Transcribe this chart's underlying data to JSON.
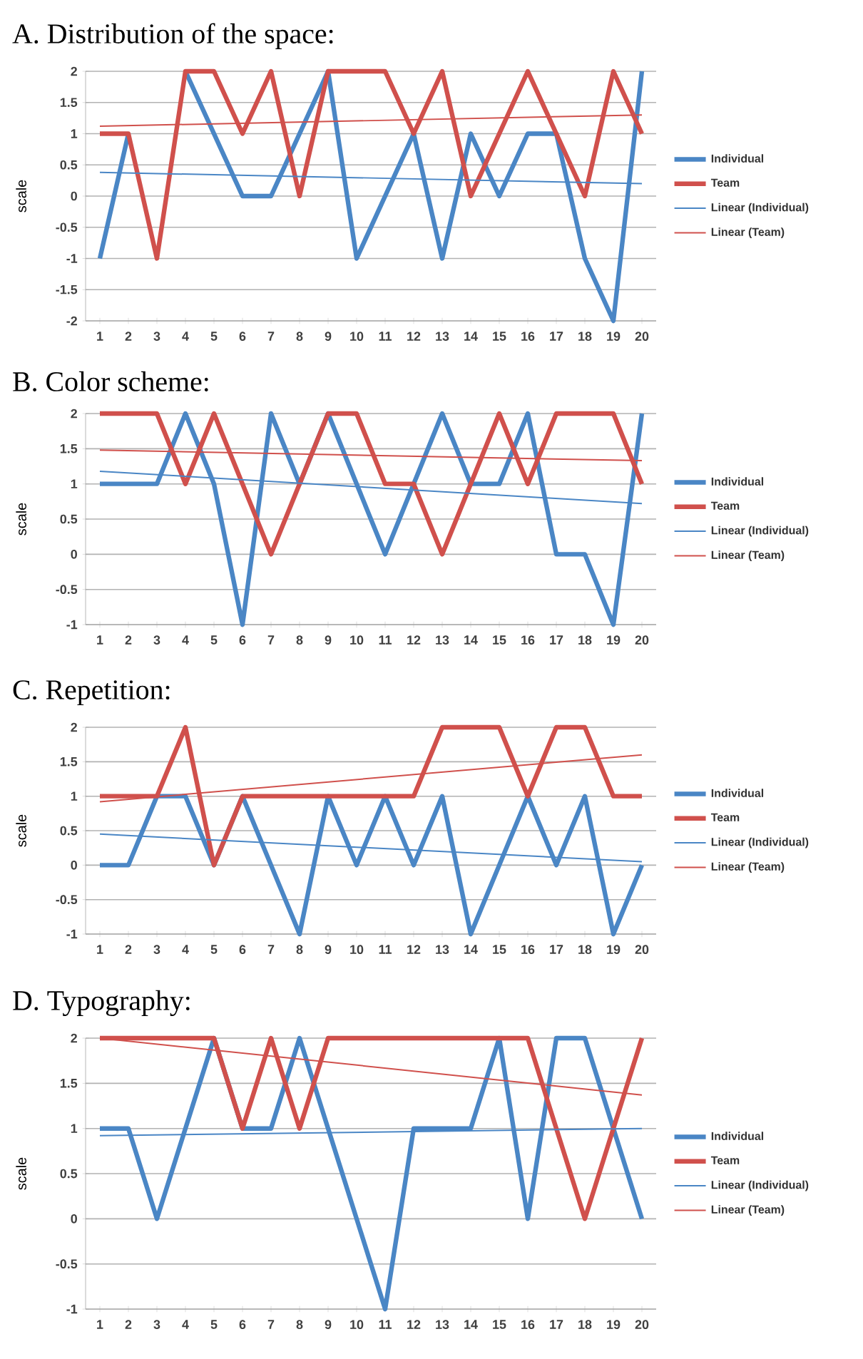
{
  "chart_data": [
    {
      "type": "line",
      "title": "A. Distribution of the space:",
      "ylabel": "scale",
      "categories": [
        "1",
        "2",
        "3",
        "4",
        "5",
        "6",
        "7",
        "8",
        "9",
        "10",
        "11",
        "12",
        "13",
        "14",
        "15",
        "16",
        "17",
        "18",
        "19",
        "20"
      ],
      "ylim": [
        -2,
        2
      ],
      "yticks": [
        -2,
        -1.5,
        -1,
        -0.5,
        0,
        0.5,
        1,
        1.5,
        2
      ],
      "grid": "y",
      "legend": "right",
      "series": [
        {
          "name": "Individual",
          "color": "#4a86c5",
          "values": [
            -1,
            1,
            null,
            2,
            1,
            0,
            0,
            1,
            2,
            -1,
            0,
            1,
            -1,
            1,
            0,
            1,
            1,
            -1,
            -2,
            2
          ]
        },
        {
          "name": "Team",
          "color": "#d0504c",
          "values": [
            1,
            1,
            -1,
            2,
            2,
            1,
            2,
            0,
            2,
            2,
            2,
            1,
            2,
            0,
            1,
            2,
            1,
            0,
            2,
            1
          ]
        },
        {
          "name": "Linear (Individual)",
          "color": "#4a86c5",
          "type": "line",
          "x": [
            "1",
            "20"
          ],
          "values": [
            0.38,
            0.2
          ]
        },
        {
          "name": "Linear (Team)",
          "color": "#d0504c",
          "type": "line",
          "x": [
            "1",
            "20"
          ],
          "values": [
            1.12,
            1.3
          ]
        }
      ]
    },
    {
      "type": "line",
      "title": "B. Color scheme:",
      "ylabel": "scale",
      "categories": [
        "1",
        "2",
        "3",
        "4",
        "5",
        "6",
        "7",
        "8",
        "9",
        "10",
        "11",
        "12",
        "13",
        "14",
        "15",
        "16",
        "17",
        "18",
        "19",
        "20"
      ],
      "ylim": [
        -1,
        2
      ],
      "yticks": [
        -1,
        -0.5,
        0,
        0.5,
        1,
        1.5,
        2
      ],
      "grid": "y",
      "legend": "right",
      "series": [
        {
          "name": "Individual",
          "color": "#4a86c5",
          "values": [
            1,
            1,
            1,
            2,
            1,
            -1,
            2,
            1,
            2,
            1,
            0,
            1,
            2,
            1,
            1,
            2,
            0,
            0,
            -1,
            2
          ]
        },
        {
          "name": "Team",
          "color": "#d0504c",
          "values": [
            2,
            2,
            2,
            1,
            2,
            1,
            0,
            1,
            2,
            2,
            1,
            1,
            0,
            1,
            2,
            1,
            2,
            2,
            2,
            1
          ]
        },
        {
          "name": "Linear (Individual)",
          "color": "#4a86c5",
          "type": "line",
          "x": [
            "1",
            "20"
          ],
          "values": [
            1.18,
            0.72
          ]
        },
        {
          "name": "Linear (Team)",
          "color": "#d0504c",
          "type": "line",
          "x": [
            "1",
            "20"
          ],
          "values": [
            1.48,
            1.33
          ]
        }
      ]
    },
    {
      "type": "line",
      "title": "C. Repetition:",
      "ylabel": "scale",
      "categories": [
        "1",
        "2",
        "3",
        "4",
        "5",
        "6",
        "7",
        "8",
        "9",
        "10",
        "11",
        "12",
        "13",
        "14",
        "15",
        "16",
        "17",
        "18",
        "19",
        "20"
      ],
      "ylim": [
        -1,
        2
      ],
      "yticks": [
        -1,
        -0.5,
        0,
        0.5,
        1,
        1.5,
        2
      ],
      "grid": "y",
      "legend": "right",
      "series": [
        {
          "name": "Individual",
          "color": "#4a86c5",
          "values": [
            0,
            0,
            1,
            1,
            0,
            1,
            0,
            -1,
            1,
            0,
            1,
            0,
            1,
            -1,
            0,
            1,
            0,
            1,
            -1,
            0
          ]
        },
        {
          "name": "Team",
          "color": "#d0504c",
          "values": [
            1,
            1,
            1,
            2,
            0,
            1,
            1,
            1,
            1,
            1,
            1,
            1,
            2,
            2,
            2,
            1,
            2,
            2,
            1,
            1
          ]
        },
        {
          "name": "Linear (Individual)",
          "color": "#4a86c5",
          "type": "line",
          "x": [
            "1",
            "20"
          ],
          "values": [
            0.45,
            0.05
          ]
        },
        {
          "name": "Linear (Team)",
          "color": "#d0504c",
          "type": "line",
          "x": [
            "1",
            "20"
          ],
          "values": [
            0.92,
            1.6
          ]
        }
      ]
    },
    {
      "type": "line",
      "title": "D. Typography:",
      "ylabel": "scale",
      "categories": [
        "1",
        "2",
        "3",
        "4",
        "5",
        "6",
        "7",
        "8",
        "9",
        "10",
        "11",
        "12",
        "13",
        "14",
        "15",
        "16",
        "17",
        "18",
        "19",
        "20"
      ],
      "ylim": [
        -1,
        2
      ],
      "yticks": [
        -1,
        -0.5,
        0,
        0.5,
        1,
        1.5,
        2
      ],
      "grid": "y",
      "legend": "right",
      "series": [
        {
          "name": "Individual",
          "color": "#4a86c5",
          "values": [
            1,
            1,
            0,
            1,
            2,
            1,
            1,
            2,
            1,
            0,
            -1,
            1,
            1,
            1,
            2,
            0,
            2,
            2,
            1,
            0
          ]
        },
        {
          "name": "Team",
          "color": "#d0504c",
          "values": [
            2,
            2,
            2,
            2,
            2,
            1,
            2,
            1,
            2,
            2,
            2,
            2,
            2,
            2,
            2,
            2,
            1,
            0,
            1,
            2
          ]
        },
        {
          "name": "Linear (Individual)",
          "color": "#4a86c5",
          "type": "line",
          "x": [
            "1",
            "20"
          ],
          "values": [
            0.92,
            1.0
          ]
        },
        {
          "name": "Linear (Team)",
          "color": "#d0504c",
          "type": "line",
          "x": [
            "1",
            "20"
          ],
          "values": [
            2.0,
            1.37
          ]
        }
      ]
    }
  ]
}
